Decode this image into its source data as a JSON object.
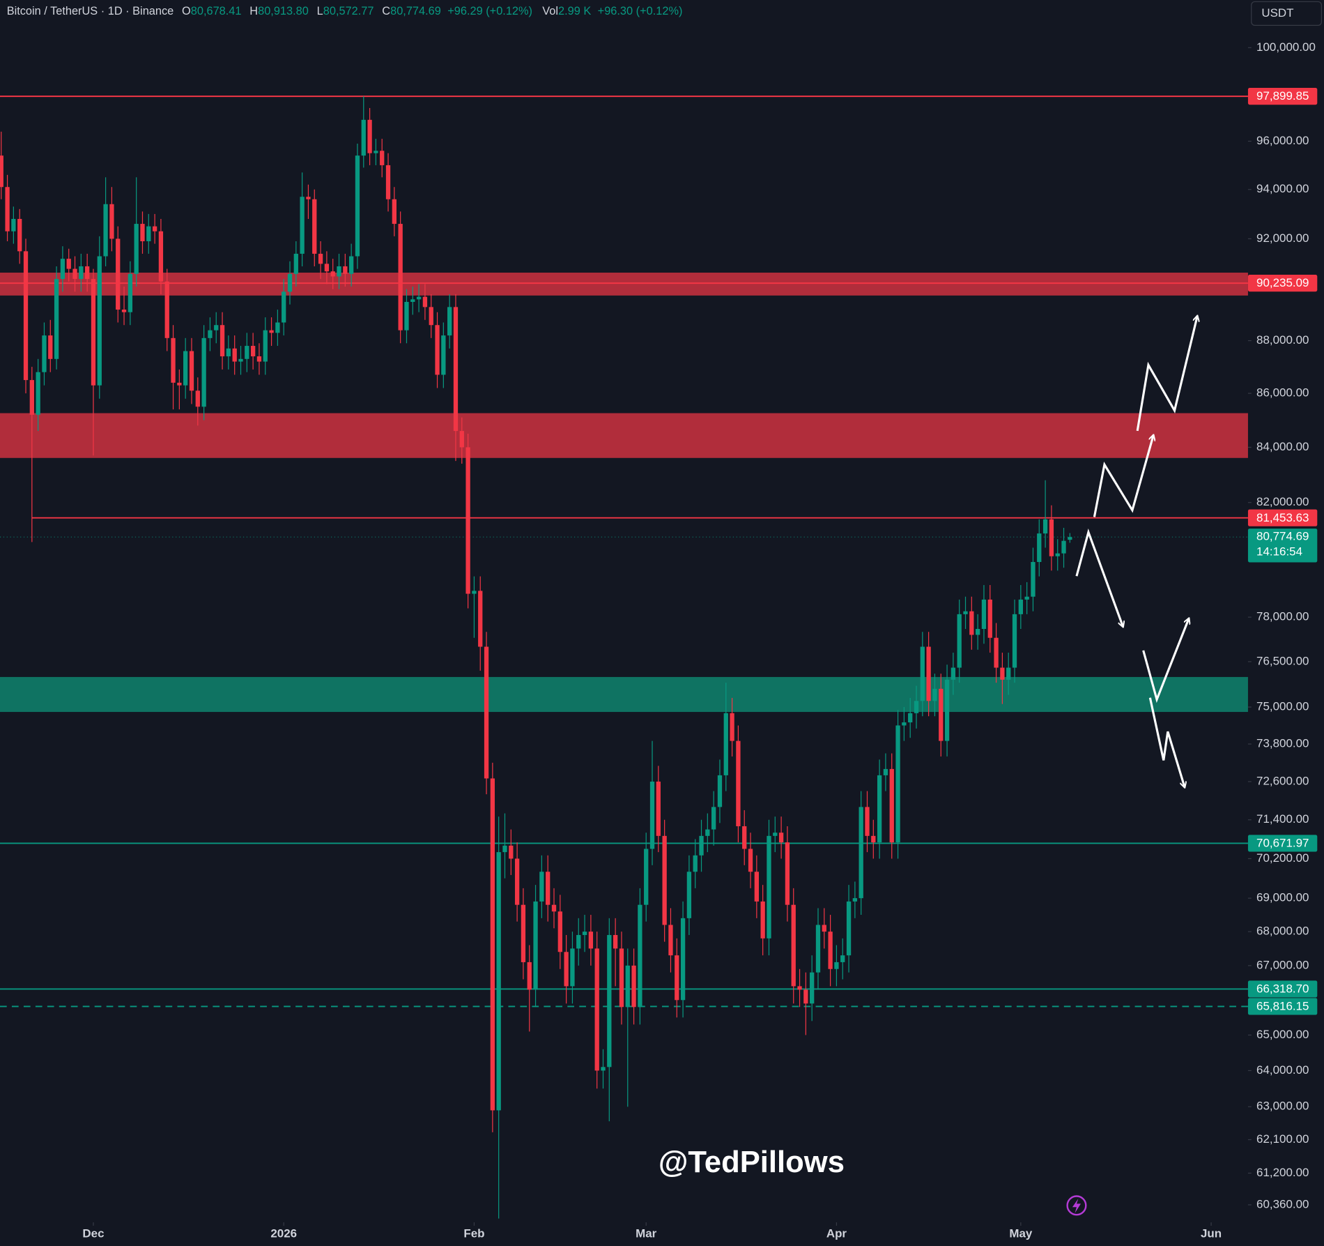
{
  "chart_data": {
    "type": "candlestick",
    "title": "Bitcoin / TetherUS · 1D · Binance",
    "ohlc_legend": [
      {
        "key": "O",
        "value": "80,678.41"
      },
      {
        "key": "H",
        "value": "80,913.80"
      },
      {
        "key": "L",
        "value": "80,572.77"
      },
      {
        "key": "C",
        "value": "80,774.69"
      }
    ],
    "change": "+96.29 (+0.12%)",
    "volume": {
      "key": "Vol",
      "value": "2.99 K",
      "change": "+96.30 (+0.12%)"
    },
    "currency": "USDT",
    "watermark": "@TedPillows",
    "up_color": "#089981",
    "down_color": "#f23645",
    "log_scale": true,
    "grid": false,
    "x": [
      0,
      1,
      2,
      3,
      4,
      5,
      6,
      7,
      8,
      9,
      10,
      11,
      12,
      13,
      14,
      15,
      16,
      17,
      18,
      19,
      20,
      21,
      22,
      23,
      24,
      25,
      26,
      27,
      28,
      29,
      30,
      31,
      32,
      33,
      34,
      35,
      36,
      37,
      38,
      39,
      40,
      41,
      42,
      43,
      44,
      45,
      46,
      47,
      48,
      49,
      50,
      51,
      52,
      53,
      54,
      55,
      56,
      57,
      58,
      59,
      60,
      61,
      62,
      63,
      64,
      65,
      66,
      67,
      68,
      69,
      70,
      71,
      72,
      73,
      74,
      75,
      76,
      77,
      78,
      79,
      80,
      81,
      82,
      83,
      84,
      85,
      86,
      87,
      88,
      89,
      90,
      91,
      92,
      93,
      94,
      95,
      96,
      97,
      98,
      99,
      100,
      101,
      102,
      103,
      104,
      105,
      106,
      107,
      108,
      109,
      110,
      111,
      112,
      113,
      114,
      115,
      116,
      117,
      118,
      119,
      120,
      121,
      122,
      123,
      124,
      125,
      126,
      127,
      128,
      129,
      130,
      131,
      132,
      133,
      134,
      135,
      136,
      137,
      138,
      139,
      140,
      141,
      142,
      143,
      144,
      145,
      146,
      147,
      148,
      149,
      150,
      151,
      152,
      153,
      154,
      155,
      156,
      157,
      158,
      159,
      160,
      161,
      162,
      163,
      164,
      165,
      166,
      167,
      168,
      169,
      170,
      171,
      172,
      173,
      174
    ],
    "open": [
      95400,
      94100,
      92300,
      92800,
      91500,
      86500,
      85200,
      86800,
      88200,
      87300,
      90400,
      91200,
      90800,
      90400,
      90900,
      90400,
      86300,
      91300,
      93400,
      92000,
      89200,
      89100,
      90600,
      92600,
      91900,
      92500,
      92300,
      90300,
      88100,
      86400,
      86300,
      87600,
      86100,
      85500,
      88100,
      88400,
      88600,
      87400,
      87700,
      87200,
      87300,
      87800,
      87400,
      87200,
      88400,
      88300,
      88700,
      89900,
      90600,
      91400,
      93700,
      93600,
      91400,
      91000,
      90700,
      90500,
      90900,
      90600,
      91300,
      95400,
      96900,
      95500,
      95600,
      95000,
      93600,
      92600,
      88400,
      89500,
      89600,
      89700,
      89300,
      88600,
      86700,
      88200,
      89300,
      84600,
      84000,
      78800,
      78900,
      77000,
      72700,
      62900,
      70400,
      70600,
      70200,
      68800,
      67100,
      66300,
      68900,
      69800,
      68800,
      68600,
      67400,
      66400,
      67500,
      67900,
      68000,
      67500,
      64000,
      64100,
      67900,
      67500,
      65800,
      67000,
      65800,
      68800,
      70500,
      72600,
      70900,
      68200,
      67300,
      66000,
      68400,
      69800,
      70300,
      70900,
      71100,
      71800,
      72800,
      74800,
      73900,
      71200,
      70500,
      69800,
      68900,
      67800,
      70900,
      71000,
      70700,
      68800,
      66400,
      66300,
      65900,
      66800,
      68200,
      68000,
      66900,
      67100,
      67300,
      68900,
      69000,
      71800,
      70900,
      70700,
      72800,
      73000,
      70700,
      74400,
      74500,
      74800,
      75200,
      77000,
      75200,
      75600,
      73900,
      75900,
      76300,
      78100,
      78200,
      77400,
      77600,
      78600,
      77300,
      76300,
      75900,
      76300,
      78100,
      78600,
      78700,
      79900,
      80900,
      81400,
      80100,
      80200,
      80678.41
    ],
    "high": [
      96400,
      94600,
      93300,
      93200,
      92000,
      87000,
      87300,
      88700,
      88800,
      90900,
      91700,
      91600,
      91300,
      91400,
      91400,
      90800,
      92100,
      94500,
      94100,
      92500,
      90100,
      91100,
      94500,
      93100,
      93000,
      93000,
      92800,
      90800,
      88600,
      86900,
      88100,
      88100,
      86600,
      88600,
      88900,
      89100,
      89100,
      88200,
      88200,
      87800,
      88300,
      88300,
      87900,
      88900,
      88900,
      89200,
      90400,
      91100,
      91900,
      94700,
      94200,
      94000,
      91900,
      91500,
      91200,
      91400,
      91400,
      91800,
      95900,
      97900,
      97400,
      96100,
      96100,
      95500,
      94100,
      93100,
      90000,
      90100,
      90200,
      90200,
      89800,
      89100,
      88700,
      89800,
      89800,
      85100,
      84500,
      79400,
      79400,
      77500,
      73200,
      71500,
      71600,
      71100,
      70700,
      69300,
      67600,
      69400,
      70300,
      70300,
      69300,
      69100,
      67900,
      68000,
      68400,
      68500,
      68500,
      68000,
      64600,
      68400,
      68400,
      68000,
      67500,
      67500,
      69300,
      71000,
      73900,
      73100,
      71400,
      68700,
      67800,
      68900,
      70300,
      70800,
      71400,
      71600,
      72300,
      73300,
      75800,
      75300,
      74400,
      71700,
      71000,
      70300,
      69400,
      71400,
      71500,
      71500,
      71200,
      69300,
      66900,
      66800,
      67300,
      68700,
      68700,
      68500,
      67600,
      67800,
      69400,
      69500,
      72300,
      72300,
      71400,
      73300,
      73500,
      73500,
      74900,
      75000,
      75300,
      75700,
      77500,
      77500,
      76100,
      76100,
      76400,
      76800,
      78600,
      78700,
      78700,
      78100,
      79100,
      79100,
      77800,
      76800,
      76800,
      78600,
      79100,
      79200,
      80400,
      81400,
      82800,
      81900,
      80700,
      81100,
      80913.8
    ],
    "low": [
      93600,
      91900,
      91800,
      91000,
      86000,
      80600,
      84600,
      86300,
      86800,
      86900,
      89900,
      90300,
      89900,
      89900,
      89900,
      83700,
      85800,
      90900,
      91500,
      88700,
      88600,
      88600,
      90100,
      91400,
      91400,
      91800,
      89800,
      87600,
      85400,
      85400,
      85800,
      85600,
      84800,
      85000,
      87600,
      87900,
      86900,
      86900,
      86700,
      86700,
      86800,
      86900,
      86700,
      86700,
      87800,
      87800,
      88200,
      89400,
      90100,
      90900,
      92800,
      90900,
      90400,
      90200,
      90000,
      90000,
      90100,
      90100,
      90800,
      94900,
      95000,
      95000,
      94500,
      93100,
      92100,
      87900,
      87900,
      89000,
      89100,
      88800,
      88100,
      86200,
      86200,
      87700,
      83500,
      83400,
      78300,
      77300,
      76200,
      72200,
      62300,
      60000,
      69600,
      69700,
      68300,
      66600,
      65100,
      65800,
      68400,
      68300,
      68100,
      66900,
      65900,
      65900,
      67000,
      67400,
      67000,
      63500,
      63500,
      62600,
      66400,
      65300,
      63000,
      65300,
      65300,
      68300,
      70000,
      70400,
      67700,
      66800,
      65500,
      65500,
      67900,
      69300,
      69800,
      70400,
      70600,
      71300,
      72300,
      73400,
      70700,
      70000,
      69300,
      68400,
      67300,
      67300,
      70400,
      70200,
      68300,
      65900,
      65800,
      65000,
      65400,
      66300,
      67500,
      66400,
      66400,
      66600,
      66800,
      68400,
      68500,
      70400,
      70200,
      70200,
      72300,
      70200,
      70200,
      73900,
      74000,
      74300,
      74700,
      74700,
      74700,
      73400,
      73400,
      75400,
      75800,
      77600,
      76900,
      76900,
      77100,
      76800,
      75800,
      75100,
      75400,
      75800,
      77600,
      78100,
      78200,
      79400,
      80400,
      79600,
      79600,
      79700,
      80572.77
    ],
    "close": [
      94100,
      92300,
      92800,
      91500,
      86500,
      85200,
      86800,
      88200,
      87300,
      90400,
      91200,
      90800,
      90400,
      90900,
      90400,
      86300,
      91300,
      93400,
      92000,
      89200,
      89100,
      90600,
      92600,
      91900,
      92500,
      92300,
      90300,
      88100,
      86400,
      86300,
      87600,
      86100,
      85500,
      88100,
      88400,
      88600,
      87400,
      87700,
      87200,
      87300,
      87800,
      87400,
      87200,
      88400,
      88300,
      88700,
      89900,
      90600,
      91400,
      93700,
      93600,
      91400,
      91000,
      90700,
      90500,
      90900,
      90600,
      91300,
      95400,
      96900,
      95500,
      95600,
      95000,
      93600,
      92600,
      88400,
      89500,
      89600,
      89700,
      89300,
      88600,
      86700,
      88200,
      89300,
      84600,
      84000,
      78800,
      78900,
      77000,
      72700,
      62900,
      70400,
      70600,
      70200,
      68800,
      67100,
      66300,
      68900,
      69800,
      68800,
      68600,
      67400,
      66400,
      67500,
      67900,
      68000,
      67500,
      64000,
      64100,
      67900,
      67500,
      65800,
      67000,
      65800,
      68800,
      70500,
      72600,
      70900,
      68200,
      67300,
      66000,
      68400,
      69800,
      70300,
      70900,
      71100,
      71800,
      72800,
      74800,
      73900,
      71200,
      70500,
      69800,
      68900,
      67800,
      70900,
      71000,
      70700,
      68800,
      66400,
      66300,
      65900,
      66800,
      68200,
      68000,
      66900,
      67100,
      67300,
      68900,
      69000,
      71800,
      70900,
      70700,
      72800,
      73000,
      70700,
      74400,
      74500,
      74800,
      75200,
      77000,
      75200,
      75600,
      73900,
      75900,
      76300,
      78100,
      78200,
      77400,
      77600,
      78600,
      77300,
      76300,
      75900,
      76300,
      78100,
      78600,
      78700,
      79900,
      80900,
      81400,
      80100,
      80200,
      80640,
      80774.69
    ],
    "xlim": [
      -0.2,
      203
    ],
    "xticks": [
      {
        "value": 15,
        "label": "Dec"
      },
      {
        "value": 46,
        "label": "2026"
      },
      {
        "value": 77,
        "label": "Feb"
      },
      {
        "value": 105,
        "label": "Mar"
      },
      {
        "value": 136,
        "label": "Apr"
      },
      {
        "value": 166,
        "label": "May"
      },
      {
        "value": 197,
        "label": "Jun"
      }
    ],
    "ylim": [
      59900,
      102100
    ],
    "yticks": [
      {
        "value": 100000,
        "label": "100,000.00"
      },
      {
        "value": 96000,
        "label": "96,000.00"
      },
      {
        "value": 94000,
        "label": "94,000.00"
      },
      {
        "value": 92000,
        "label": "92,000.00"
      },
      {
        "value": 88000,
        "label": "88,000.00"
      },
      {
        "value": 86000,
        "label": "86,000.00"
      },
      {
        "value": 84000,
        "label": "84,000.00"
      },
      {
        "value": 82000,
        "label": "82,000.00"
      },
      {
        "value": 78000,
        "label": "78,000.00"
      },
      {
        "value": 76500,
        "label": "76,500.00"
      },
      {
        "value": 75000,
        "label": "75,000.00"
      },
      {
        "value": 73800,
        "label": "73,800.00"
      },
      {
        "value": 72600,
        "label": "72,600.00"
      },
      {
        "value": 71400,
        "label": "71,400.00"
      },
      {
        "value": 70200,
        "label": "70,200.00"
      },
      {
        "value": 69000,
        "label": "69,000.00"
      },
      {
        "value": 68000,
        "label": "68,000.00"
      },
      {
        "value": 67000,
        "label": "67,000.00"
      },
      {
        "value": 65000,
        "label": "65,000.00"
      },
      {
        "value": 64000,
        "label": "64,000.00"
      },
      {
        "value": 63000,
        "label": "63,000.00"
      },
      {
        "value": 62100,
        "label": "62,100.00"
      },
      {
        "value": 61200,
        "label": "61,200.00"
      },
      {
        "value": 60360,
        "label": "60,360.00"
      }
    ],
    "zones": [
      {
        "low": 89750,
        "high": 90650,
        "color": "#b12d3b"
      },
      {
        "low": 83610,
        "high": 85260,
        "color": "#b12d3b"
      },
      {
        "low": 74840,
        "high": 75990,
        "color": "#0f7362"
      }
    ],
    "levels": [
      {
        "value": 97899.85,
        "label": "97,899.85",
        "color": "#f23645",
        "style": "solid"
      },
      {
        "value": 90235.09,
        "label": "90,235.09",
        "color": "#f23645",
        "style": "solid"
      },
      {
        "value": 81453.63,
        "label": "81,453.63",
        "color": "#f23645",
        "style": "solid",
        "x_start": 5
      },
      {
        "value": 70671.97,
        "label": "70,671.97",
        "color": "#089981",
        "style": "solid"
      },
      {
        "value": 66318.7,
        "label": "66,318.70",
        "color": "#089981",
        "style": "solid"
      },
      {
        "value": 65816.15,
        "label": "65,816.15",
        "color": "#089981",
        "style": "dashed"
      }
    ],
    "last_price": {
      "value": 80774.69,
      "label": "80,774.69",
      "countdown": "14:16:54",
      "color": "#089981"
    }
  }
}
